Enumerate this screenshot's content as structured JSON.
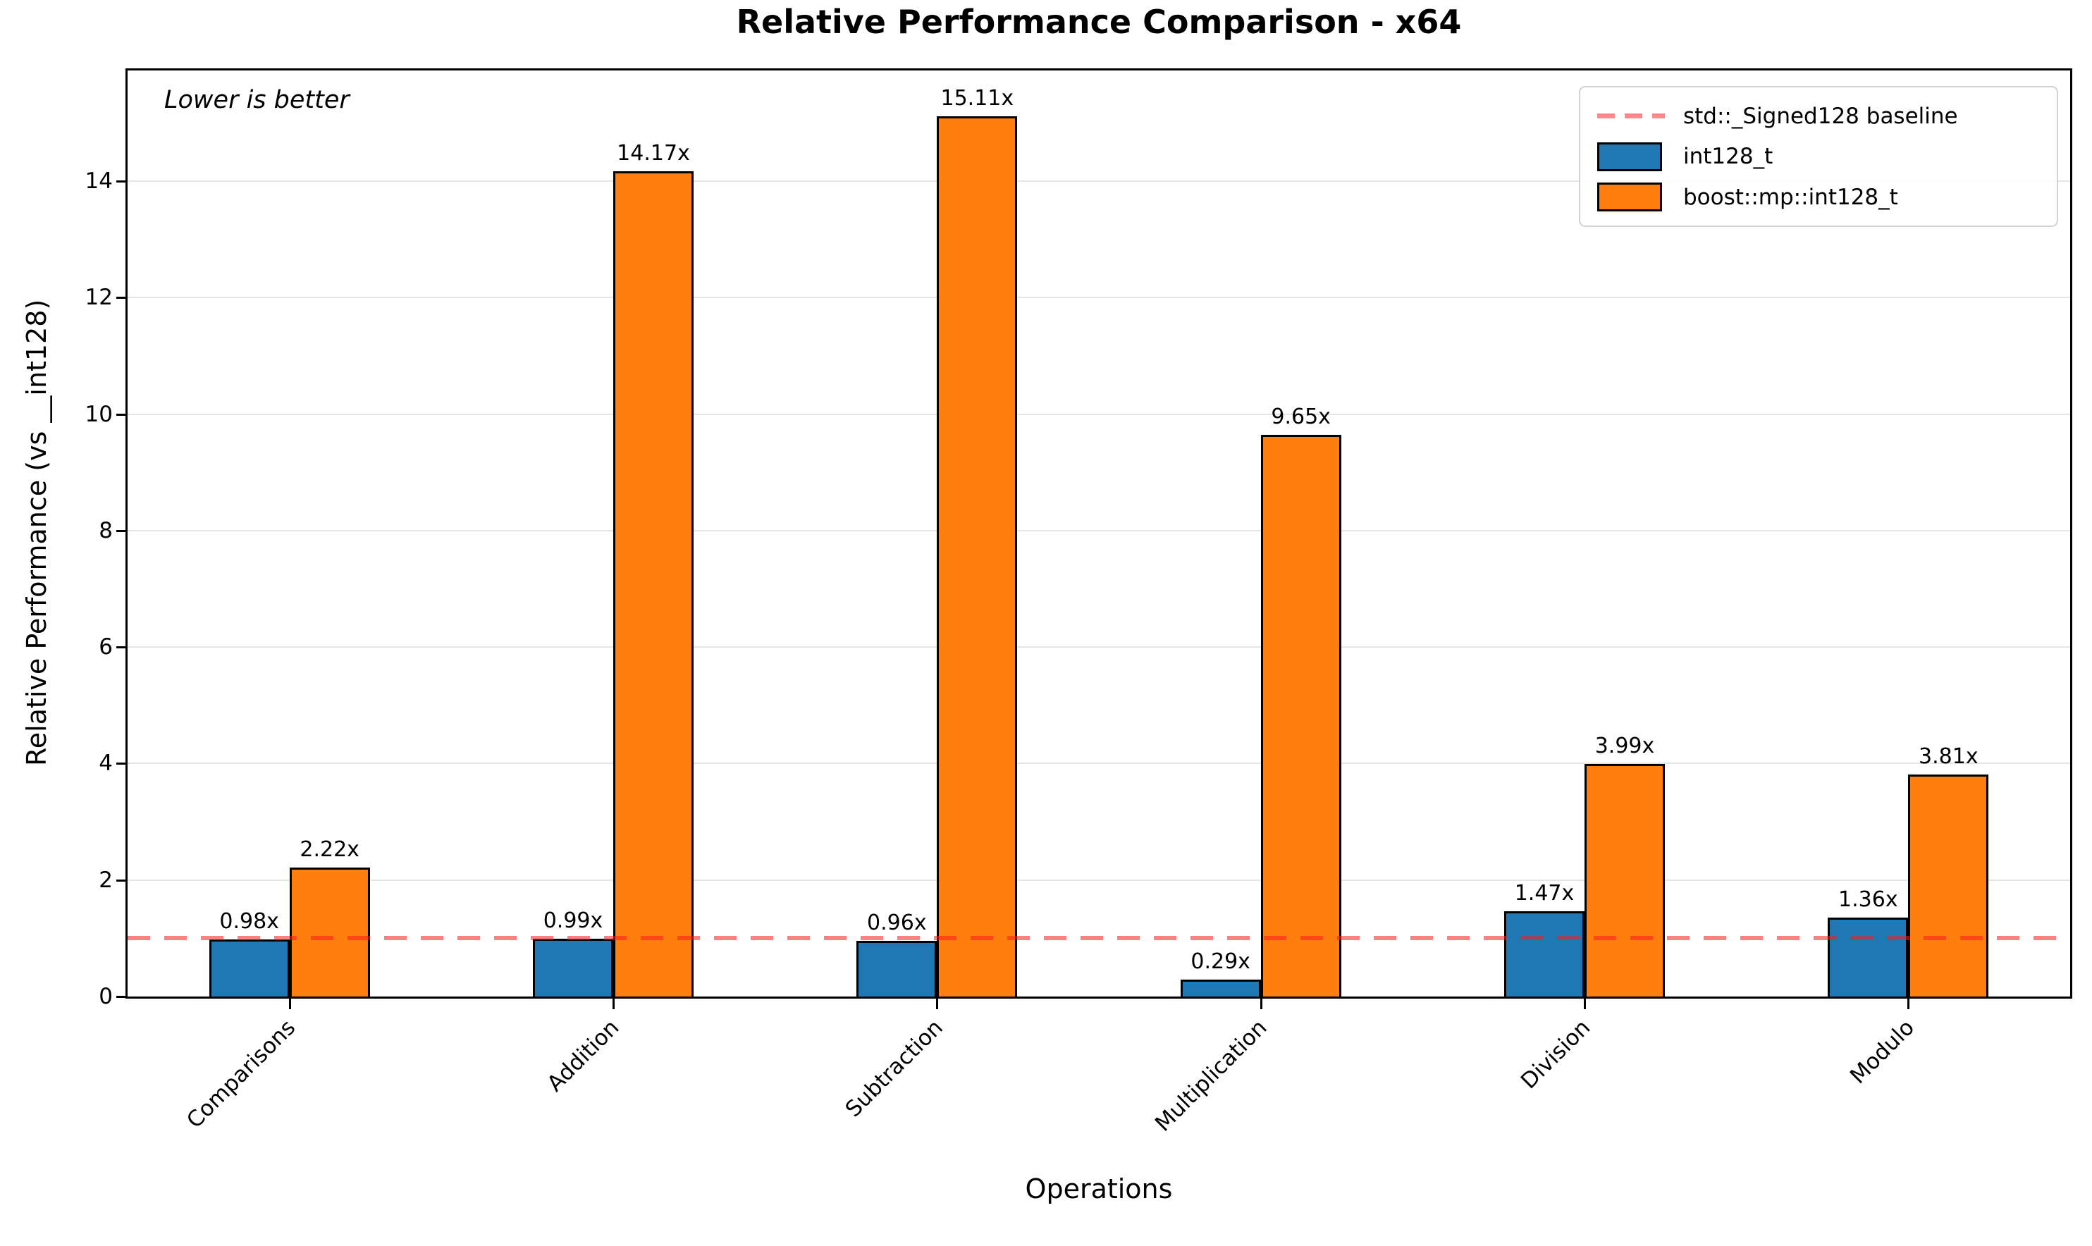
{
  "chart_data": {
    "type": "bar",
    "title": "Relative Performance Comparison - x64",
    "xlabel": "Operations",
    "ylabel": "Relative Performance (vs __int128)",
    "annotation": "Lower is better",
    "categories": [
      "Comparisons",
      "Addition",
      "Subtraction",
      "Multiplication",
      "Division",
      "Modulo"
    ],
    "series": [
      {
        "name": "int128_t",
        "color": "#1f77b4",
        "values": [
          0.98,
          0.99,
          0.96,
          0.29,
          1.47,
          1.36
        ],
        "labels": [
          "0.98x",
          "0.99x",
          "0.96x",
          "0.29x",
          "1.47x",
          "1.36x"
        ]
      },
      {
        "name": "boost::mp::int128_t",
        "color": "#ff7f0e",
        "values": [
          2.22,
          14.17,
          15.11,
          9.65,
          3.99,
          3.81
        ],
        "labels": [
          "2.22x",
          "14.17x",
          "15.11x",
          "9.65x",
          "3.99x",
          "3.81x"
        ]
      }
    ],
    "baseline": {
      "value": 1,
      "label": "std::_Signed128 baseline",
      "color": "#ff1919"
    },
    "yticks": [
      0,
      2,
      4,
      6,
      8,
      10,
      12,
      14
    ],
    "ylim": [
      0,
      15.9
    ],
    "grid": true,
    "legend_position": "upper right",
    "bar_edge_color": "#000000"
  }
}
